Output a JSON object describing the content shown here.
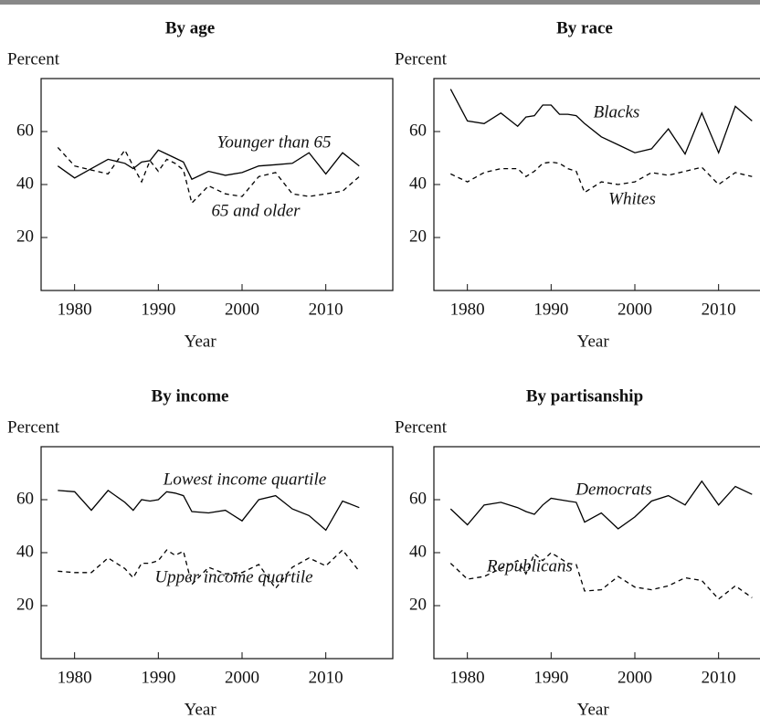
{
  "chart_data": [
    {
      "type": "line",
      "title": "By age",
      "ylabel": "Percent",
      "xlabel": "Year",
      "x": [
        1978,
        1980,
        1982,
        1984,
        1986,
        1987,
        1988,
        1989,
        1990,
        1991,
        1992,
        1993,
        1994,
        1996,
        1998,
        2000,
        2002,
        2004,
        2006,
        2008,
        2010,
        2012,
        2014
      ],
      "xlim": [
        1976,
        2018
      ],
      "xticks": [
        1980,
        1990,
        2000,
        2010
      ],
      "ylim": [
        0,
        80
      ],
      "yticks": [
        20,
        40,
        60
      ],
      "series": [
        {
          "name": "Younger than 65",
          "color": "#000000",
          "style": "solid",
          "values": [
            47,
            42.5,
            46,
            49.5,
            48,
            46,
            48.5,
            49,
            53,
            51.5,
            50,
            48.5,
            42,
            45,
            43.5,
            44.5,
            47,
            47.5,
            48,
            52,
            44,
            52,
            47
          ]
        },
        {
          "name": "65 and older",
          "color": "#000000",
          "style": "dashed",
          "values": [
            54,
            47,
            45.5,
            44,
            53,
            47,
            41,
            49,
            45,
            49.5,
            48,
            45.5,
            33,
            39.5,
            36.5,
            35.5,
            43,
            44.5,
            36.5,
            35.5,
            36.5,
            37.5,
            43
          ]
        }
      ]
    },
    {
      "type": "line",
      "title": "By race",
      "ylabel": "Percent",
      "xlabel": "Year",
      "x": [
        1978,
        1980,
        1982,
        1984,
        1986,
        1987,
        1988,
        1989,
        1990,
        1991,
        1992,
        1993,
        1994,
        1996,
        1998,
        2000,
        2002,
        2004,
        2006,
        2008,
        2010,
        2012,
        2014
      ],
      "xlim": [
        1976,
        2018
      ],
      "xticks": [
        1980,
        1990,
        2000,
        2010
      ],
      "ylim": [
        0,
        80
      ],
      "yticks": [
        20,
        40,
        60
      ],
      "series": [
        {
          "name": "Blacks",
          "color": "#000000",
          "style": "solid",
          "values": [
            76,
            64,
            63,
            67,
            62,
            65.5,
            66,
            70,
            70,
            66.5,
            66.5,
            66,
            63,
            58,
            55,
            52,
            53.5,
            61,
            51.5,
            67,
            52,
            69.5,
            64
          ]
        },
        {
          "name": "Whites",
          "color": "#000000",
          "style": "dashed",
          "values": [
            44,
            41,
            44.5,
            46,
            46,
            43,
            45,
            48,
            48.5,
            48,
            46,
            45,
            37,
            41,
            40,
            41,
            44.5,
            43.5,
            45,
            46.5,
            40,
            44.5,
            43
          ]
        }
      ]
    },
    {
      "type": "line",
      "title": "By income",
      "ylabel": "Percent",
      "xlabel": "Year",
      "x": [
        1978,
        1980,
        1982,
        1984,
        1986,
        1987,
        1988,
        1989,
        1990,
        1991,
        1992,
        1993,
        1994,
        1996,
        1998,
        2000,
        2002,
        2004,
        2006,
        2008,
        2010,
        2012,
        2014
      ],
      "xlim": [
        1976,
        2018
      ],
      "xticks": [
        1980,
        1990,
        2000,
        2010
      ],
      "ylim": [
        0,
        80
      ],
      "yticks": [
        20,
        40,
        60
      ],
      "series": [
        {
          "name": "Lowest income quartile",
          "color": "#000000",
          "style": "solid",
          "values": [
            63.5,
            63,
            56,
            63.5,
            59,
            56,
            60,
            59.5,
            60,
            63,
            62.5,
            61.5,
            55.5,
            55,
            56,
            52,
            60,
            61.5,
            56.5,
            54,
            48.5,
            59.5,
            57
          ]
        },
        {
          "name": "Upper income quartile",
          "color": "#000000",
          "style": "dashed",
          "values": [
            33,
            32.5,
            32.5,
            38,
            34,
            30.5,
            36,
            36,
            37,
            41,
            39,
            40.5,
            28,
            34.5,
            32,
            32.5,
            35.5,
            26.5,
            34.5,
            38,
            35,
            41,
            33
          ]
        }
      ]
    },
    {
      "type": "line",
      "title": "By partisanship",
      "ylabel": "Percent",
      "xlabel": "Year",
      "x": [
        1978,
        1980,
        1982,
        1984,
        1986,
        1987,
        1988,
        1989,
        1990,
        1991,
        1992,
        1993,
        1994,
        1996,
        1998,
        2000,
        2002,
        2004,
        2006,
        2008,
        2010,
        2012,
        2014
      ],
      "xlim": [
        1976,
        2018
      ],
      "xticks": [
        1980,
        1990,
        2000,
        2010
      ],
      "ylim": [
        0,
        80
      ],
      "yticks": [
        20,
        40,
        60
      ],
      "series": [
        {
          "name": "Democrats",
          "color": "#000000",
          "style": "solid",
          "values": [
            56.5,
            50.5,
            58,
            59,
            57,
            55.5,
            54.5,
            58,
            60.5,
            60,
            59.5,
            59,
            51.5,
            55,
            49,
            53.5,
            59.5,
            61.5,
            58,
            67,
            58,
            65,
            62
          ]
        },
        {
          "name": "Republicans",
          "color": "#000000",
          "style": "dashed",
          "values": [
            36,
            30,
            31,
            34,
            37,
            32,
            39.5,
            37,
            40,
            38,
            36,
            35.5,
            25.5,
            26,
            31,
            27,
            26,
            27.5,
            30.5,
            29.5,
            22.5,
            27.5,
            23
          ]
        }
      ]
    }
  ]
}
